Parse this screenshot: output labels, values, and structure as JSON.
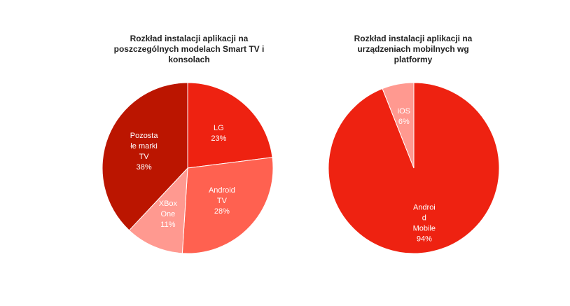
{
  "chart_data": [
    {
      "type": "pie",
      "title": "Rozkład instalacji aplikacji na poszczególnych modelach Smart TV i konsolach",
      "title_lines": [
        "Rozkład instalacji aplikacji na",
        "poszczególnych modelach Smart TV i",
        "konsolach"
      ],
      "slices": [
        {
          "label": "LG",
          "label_lines": [
            "LG"
          ],
          "value": 23,
          "value_text": "23%",
          "color": "#ee2211"
        },
        {
          "label": "Android TV",
          "label_lines": [
            "Android",
            "TV"
          ],
          "value": 28,
          "value_text": "28%",
          "color": "#ff6150"
        },
        {
          "label": "XBox One",
          "label_lines": [
            "XBox",
            "One"
          ],
          "value": 11,
          "value_text": "11%",
          "color": "#ff9990"
        },
        {
          "label": "Pozostałe marki TV",
          "label_lines": [
            "Pozosta",
            "łe marki",
            "TV"
          ],
          "value": 38,
          "value_text": "38%",
          "color": "#bb1500"
        }
      ]
    },
    {
      "type": "pie",
      "title": "Rozkład instalacji aplikacji na urządzeniach mobilnych wg platformy",
      "title_lines": [
        "Rozkład instalacji aplikacji na",
        "urządzeniach mobilnych wg",
        "platformy"
      ],
      "slices": [
        {
          "label": "Android Mobile",
          "label_lines": [
            "Androi",
            "d",
            "Mobile"
          ],
          "value": 94,
          "value_text": "94%",
          "color": "#ee2211"
        },
        {
          "label": "iOS",
          "label_lines": [
            "iOS"
          ],
          "value": 6,
          "value_text": "6%",
          "color": "#ff9990"
        }
      ]
    }
  ]
}
